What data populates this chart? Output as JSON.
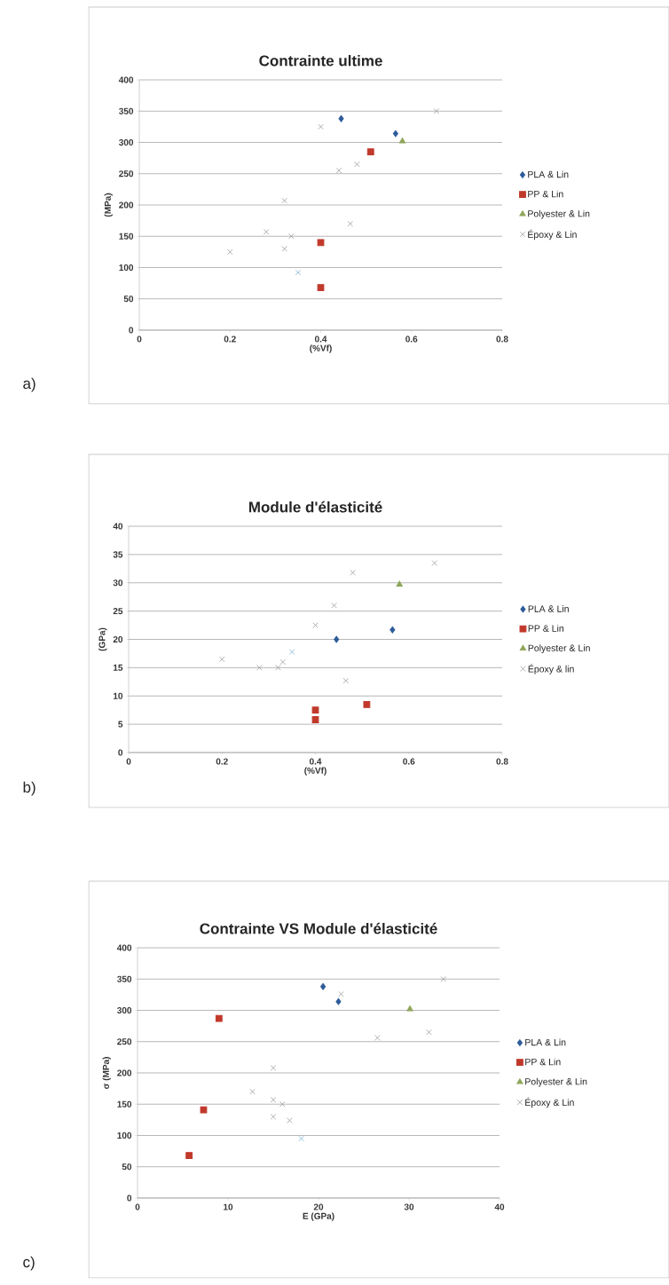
{
  "chart_data": [
    {
      "type": "scatter",
      "title": "Contrainte ultime",
      "xlabel": "(%Vf)",
      "ylabel": "(MPa)",
      "annotations": [
        "a)"
      ],
      "xlim": [
        0,
        0.8
      ],
      "xticks": [
        0,
        0.2,
        0.4,
        0.6,
        0.8
      ],
      "ylim": [
        0,
        400
      ],
      "yticks": [
        0,
        50,
        100,
        150,
        200,
        250,
        300,
        350,
        400
      ],
      "grid": "y",
      "legend": "right",
      "series": [
        {
          "name": "PLA & Lin",
          "color": "#2e5c9a",
          "marker": "diamond",
          "x": [
            0.445,
            0.565
          ],
          "values": [
            338,
            314
          ]
        },
        {
          "name": "PP & Lin",
          "color": "#c0392b",
          "marker": "square",
          "x": [
            0.4,
            0.4,
            0.51
          ],
          "values": [
            140,
            68,
            285
          ]
        },
        {
          "name": "Polyester & Lin",
          "color": "#8fa65a",
          "marker": "triangle",
          "x": [
            0.58
          ],
          "values": [
            302
          ]
        },
        {
          "name": "Époxy & Lin",
          "color": "#9a9a9a",
          "marker": "cross",
          "x": [
            0.2,
            0.28,
            0.32,
            0.32,
            0.335,
            0.4,
            0.44,
            0.48,
            0.465,
            0.655
          ],
          "values": [
            125,
            157,
            207,
            130,
            150,
            325,
            255,
            265,
            170,
            350
          ]
        },
        {
          "color": "#7fb2d6",
          "marker": "cross",
          "x": [
            0.35
          ],
          "values": [
            92
          ]
        }
      ]
    },
    {
      "type": "scatter",
      "title": "Module d'élasticité",
      "xlabel": "(%Vf)",
      "ylabel": "(GPa)",
      "annotations": [
        "b)"
      ],
      "xlim": [
        0,
        0.8
      ],
      "xticks": [
        0,
        0.2,
        0.4,
        0.6,
        0.8
      ],
      "ylim": [
        0,
        40
      ],
      "yticks": [
        0,
        5,
        10,
        15,
        20,
        25,
        30,
        35,
        40
      ],
      "grid": "y",
      "legend": "right",
      "series": [
        {
          "name": "PLA & Lin",
          "color": "#2e5c9a",
          "marker": "diamond",
          "x": [
            0.445,
            0.565
          ],
          "values": [
            20,
            21.7
          ]
        },
        {
          "name": "PP & Lin",
          "color": "#c0392b",
          "marker": "square",
          "x": [
            0.4,
            0.4,
            0.51
          ],
          "values": [
            7.5,
            5.8,
            8.5
          ]
        },
        {
          "name": "Polyester & Lin",
          "color": "#8fa65a",
          "marker": "triangle",
          "x": [
            0.58
          ],
          "values": [
            29.7
          ]
        },
        {
          "name": "Époxy & lin",
          "color": "#9a9a9a",
          "marker": "cross",
          "x": [
            0.2,
            0.28,
            0.32,
            0.33,
            0.4,
            0.44,
            0.48,
            0.465,
            0.655
          ],
          "values": [
            16.5,
            15,
            15,
            16,
            22.5,
            26,
            31.8,
            12.7,
            33.5
          ]
        },
        {
          "color": "#7fb2d6",
          "marker": "cross",
          "x": [
            0.35
          ],
          "values": [
            17.8
          ]
        }
      ]
    },
    {
      "type": "scatter",
      "title": "Contrainte VS Module d'élasticité",
      "xlabel": "E (GPa)",
      "ylabel": "σ (MPa)",
      "annotations": [
        "c)"
      ],
      "xlim": [
        0,
        40
      ],
      "xticks": [
        0,
        10,
        20,
        30,
        40
      ],
      "ylim": [
        0,
        400
      ],
      "yticks": [
        0,
        50,
        100,
        150,
        200,
        250,
        300,
        350,
        400
      ],
      "grid": "y",
      "legend": "right",
      "series": [
        {
          "name": "PLA & Lin",
          "color": "#2e5c9a",
          "marker": "diamond",
          "x": [
            20.5,
            22.2
          ],
          "values": [
            338,
            314
          ]
        },
        {
          "name": "PP & Lin",
          "color": "#c0392b",
          "marker": "square",
          "x": [
            5.7,
            7.3,
            9
          ],
          "values": [
            68,
            141,
            287
          ]
        },
        {
          "name": "Polyester & Lin",
          "color": "#8fa65a",
          "marker": "triangle",
          "x": [
            30.1
          ],
          "values": [
            302
          ]
        },
        {
          "name": "Époxy & Lin",
          "color": "#9a9a9a",
          "marker": "cross",
          "x": [
            12.7,
            15,
            15,
            16,
            15,
            16.8,
            22.5,
            26.5,
            32.2,
            33.8
          ],
          "values": [
            170,
            208,
            157,
            150,
            130,
            124,
            326,
            256,
            265,
            350
          ]
        },
        {
          "color": "#7fb2d6",
          "marker": "cross",
          "x": [
            18.1
          ],
          "values": [
            95
          ]
        }
      ]
    }
  ]
}
